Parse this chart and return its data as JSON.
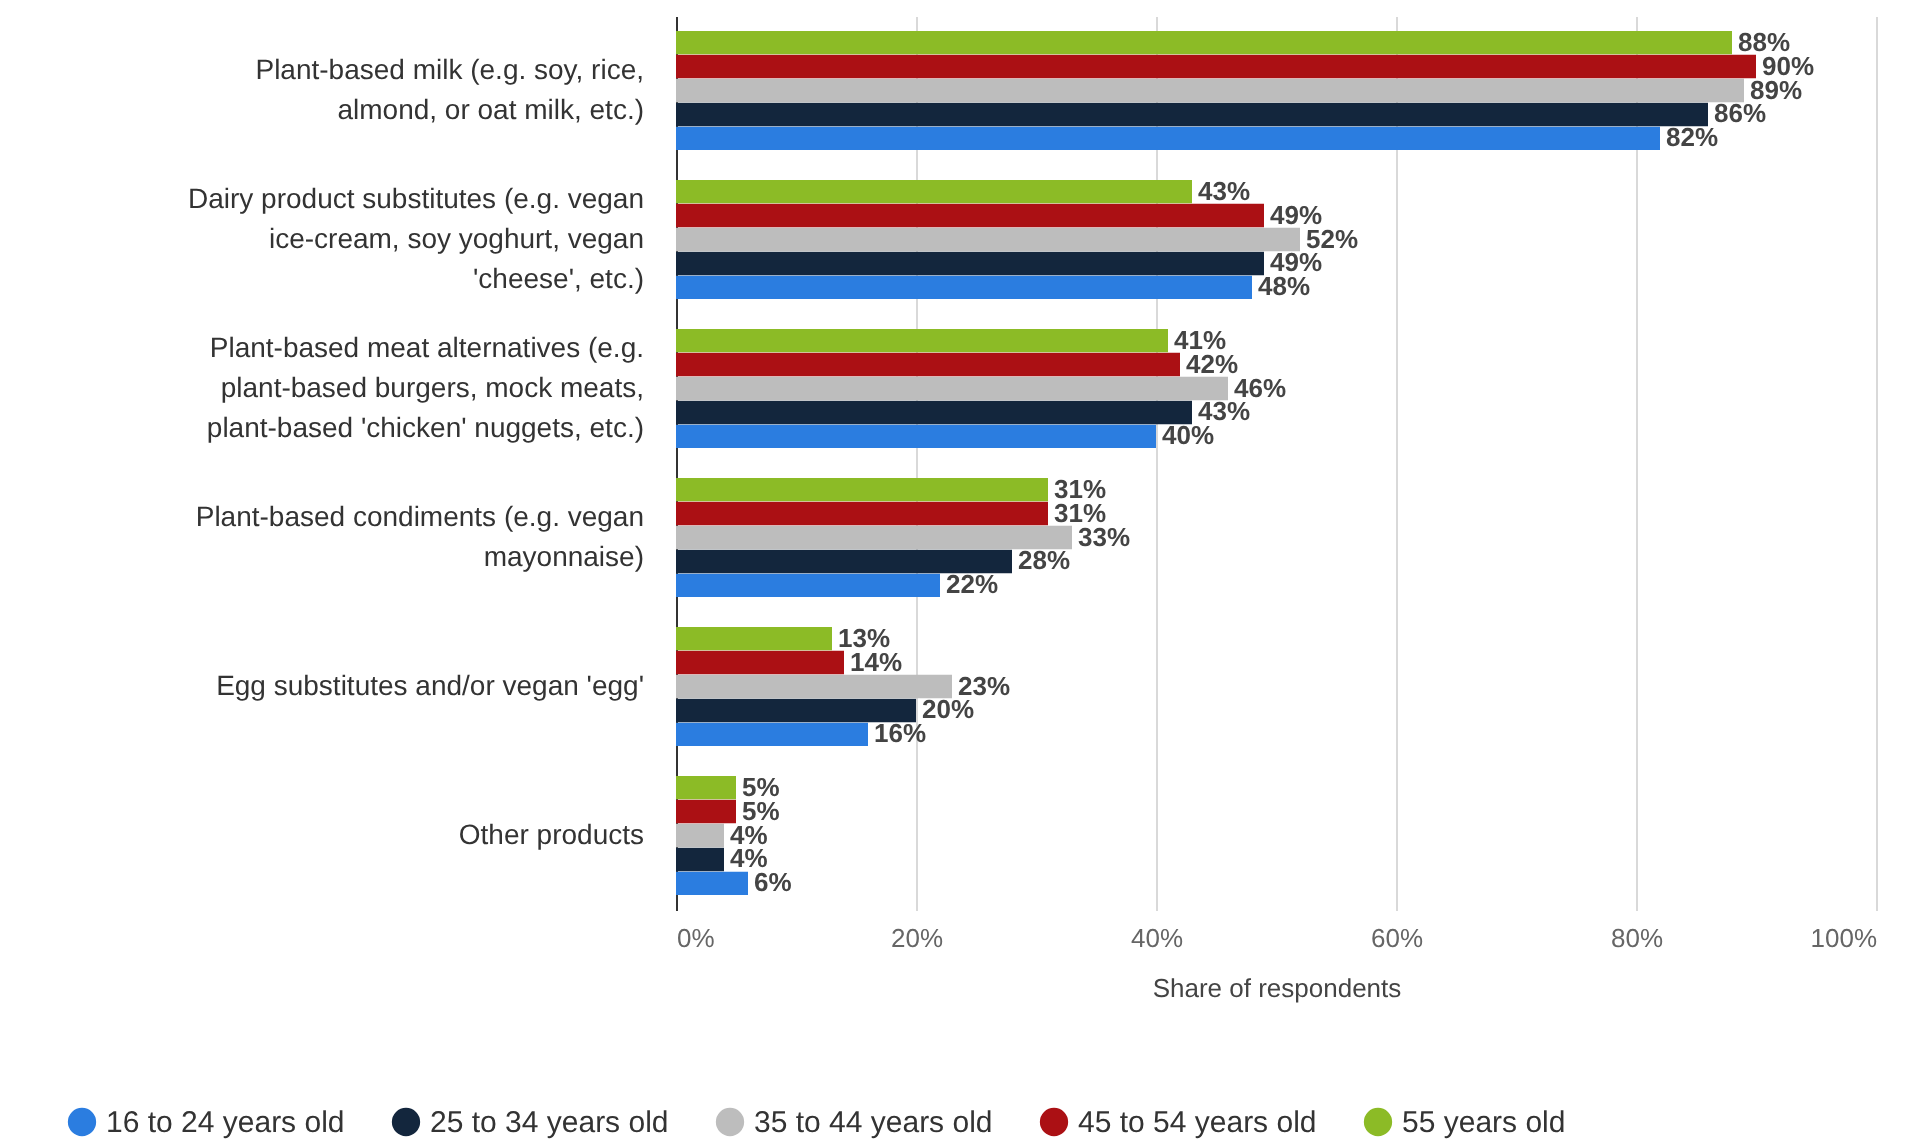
{
  "chart_data": {
    "type": "bar",
    "orientation": "horizontal",
    "xlabel": "Share of respondents",
    "categories": [
      "Plant-based milk (e.g. soy, rice, almond, or oat milk, etc.)",
      "Dairy product substitutes (e.g. vegan ice-cream, soy yoghurt, vegan 'cheese', etc.)",
      "Plant-based meat alternatives (e.g. plant-based burgers, mock meats, plant-based 'chicken' nuggets, etc.)",
      "Plant-based condiments (e.g. vegan mayonnaise)",
      "Egg substitutes and/or vegan 'egg'",
      "Other products"
    ],
    "series": [
      {
        "name": "16 to 24 years old",
        "color": "#2b7de0",
        "values": [
          82,
          48,
          40,
          22,
          16,
          6
        ],
        "value_labels": [
          "82%",
          "48%",
          "40%",
          "22%",
          "16%",
          "6%"
        ]
      },
      {
        "name": "25 to 34 years old",
        "color": "#13263d",
        "values": [
          86,
          49,
          43,
          28,
          20,
          4
        ],
        "value_labels": [
          "86%",
          "49%",
          "43%",
          "28%",
          "20%",
          "4%"
        ]
      },
      {
        "name": "35 to 44 years old",
        "color": "#bdbdbd",
        "values": [
          89,
          52,
          46,
          33,
          23,
          4
        ],
        "value_labels": [
          "89%",
          "52%",
          "46%",
          "33%",
          "23%",
          "4%"
        ]
      },
      {
        "name": "45 to 54 years old",
        "color": "#ab1014",
        "values": [
          90,
          49,
          42,
          31,
          14,
          5
        ],
        "value_labels": [
          "90%",
          "49%",
          "42%",
          "31%",
          "14%",
          "5%"
        ]
      },
      {
        "name": "55 years old",
        "color": "#8cbb26",
        "values": [
          88,
          43,
          41,
          31,
          13,
          5
        ],
        "value_labels": [
          "88%",
          "43%",
          "41%",
          "31%",
          "13%",
          "5%"
        ]
      }
    ],
    "xlim": [
      0,
      100
    ],
    "xticks": [
      {
        "value": 0,
        "label": "0%"
      },
      {
        "value": 20,
        "label": "20%"
      },
      {
        "value": 40,
        "label": "40%"
      },
      {
        "value": 60,
        "label": "60%"
      },
      {
        "value": 80,
        "label": "80%"
      },
      {
        "value": 100,
        "label": "100%"
      }
    ],
    "grid": "x",
    "legend": "bottom"
  }
}
